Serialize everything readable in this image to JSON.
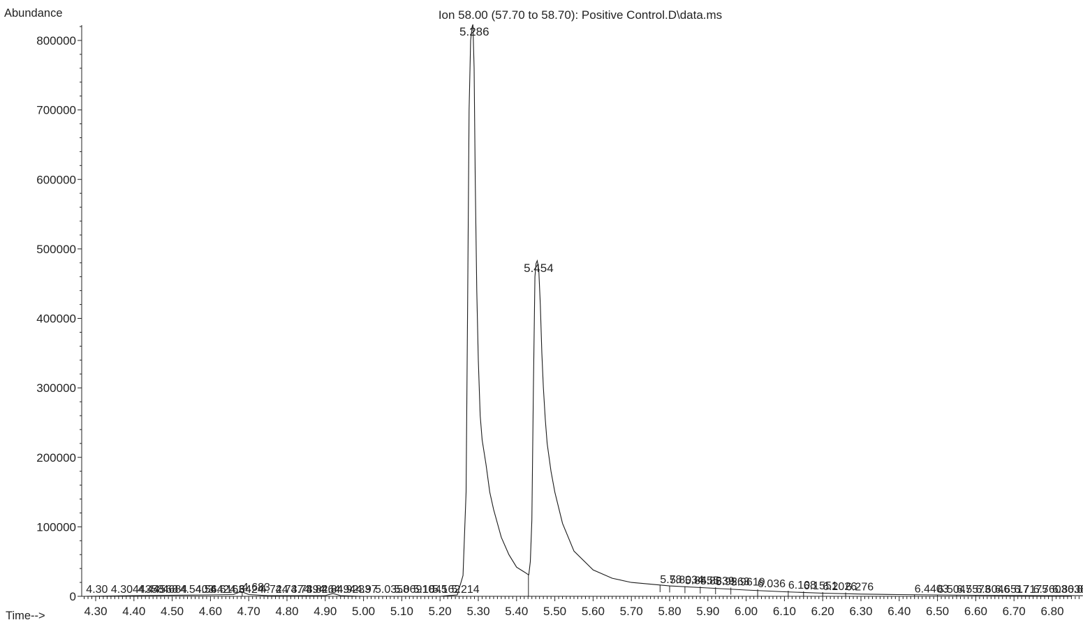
{
  "chart_data": {
    "type": "line",
    "title": "Ion  58.00 (57.70 to 58.70): Positive Control.D\\data.ms",
    "ylabel": "Abundance",
    "xlabel": "Time-->",
    "xlim": [
      4.27,
      6.89
    ],
    "ylim": [
      0,
      830000
    ],
    "x_ticks": [
      "4.30",
      "4.40",
      "4.50",
      "4.60",
      "4.70",
      "4.80",
      "4.90",
      "5.00",
      "5.10",
      "5.20",
      "5.30",
      "5.40",
      "5.50",
      "5.60",
      "5.70",
      "5.80",
      "5.90",
      "6.00",
      "6.10",
      "6.20",
      "6.30",
      "6.40",
      "6.50",
      "6.60",
      "6.70",
      "6.80"
    ],
    "y_ticks": [
      "0",
      "100000",
      "200000",
      "300000",
      "400000",
      "500000",
      "600000",
      "700000",
      "800000"
    ],
    "grid": false,
    "series": [
      {
        "x": [
          4.27,
          4.4,
          4.6,
          4.66,
          4.68,
          4.7,
          4.75,
          4.9,
          4.92,
          4.94,
          5.0,
          5.2,
          5.245,
          5.26,
          5.268,
          5.272,
          5.276,
          5.28,
          5.284,
          5.286,
          5.289,
          5.292,
          5.296,
          5.3,
          5.305,
          5.31,
          5.32,
          5.33,
          5.34,
          5.36,
          5.38,
          5.4,
          5.42,
          5.431,
          5.432,
          5.436,
          5.44,
          5.444,
          5.448,
          5.451,
          5.454,
          5.458,
          5.462,
          5.466,
          5.47,
          5.475,
          5.48,
          5.49,
          5.5,
          5.52,
          5.55,
          5.6,
          5.65,
          5.7,
          5.8,
          5.9,
          6.0,
          6.1,
          6.2,
          6.3,
          6.4,
          6.5,
          6.6,
          6.7,
          6.8,
          6.88
        ],
        "y": [
          0,
          1000,
          2000,
          2500,
          7000,
          2500,
          1000,
          1000,
          4000,
          1000,
          0,
          0,
          2000,
          30000,
          150000,
          420000,
          700000,
          800000,
          820000,
          823000,
          760000,
          600000,
          440000,
          340000,
          260000,
          225000,
          190000,
          150000,
          125000,
          85000,
          60000,
          42000,
          35000,
          31000,
          31000,
          50000,
          110000,
          300000,
          460000,
          479000,
          483000,
          470000,
          420000,
          350000,
          300000,
          255000,
          220000,
          180000,
          150000,
          105000,
          65000,
          38000,
          26000,
          20000,
          15000,
          12000,
          9000,
          6500,
          4500,
          3200,
          2500,
          2000,
          1500,
          1200,
          1000,
          800
        ]
      }
    ],
    "peak_labels": [
      {
        "x": 5.286,
        "y": 823000,
        "label": "5.286"
      },
      {
        "x": 5.454,
        "y": 483000,
        "label": "5.454"
      }
    ],
    "annotations": [
      {
        "x": 4.275,
        "y": 0,
        "label": "4.30"
      },
      {
        "x": 4.34,
        "y": 0,
        "label": "4.3044358"
      },
      {
        "x": 4.41,
        "y": 0,
        "label": "4.44568"
      },
      {
        "x": 4.45,
        "y": 0,
        "label": "4.4684"
      },
      {
        "x": 4.52,
        "y": 0,
        "label": "4.5403"
      },
      {
        "x": 4.56,
        "y": 0,
        "label": "4.5642"
      },
      {
        "x": 4.6,
        "y": 0,
        "label": "4.6163"
      },
      {
        "x": 4.65,
        "y": 0,
        "label": "4.6424"
      },
      {
        "x": 4.683,
        "y": 5000,
        "label": "4.683"
      },
      {
        "x": 4.73,
        "y": 0,
        "label": "4.724"
      },
      {
        "x": 4.77,
        "y": 0,
        "label": "4.7374"
      },
      {
        "x": 4.81,
        "y": 0,
        "label": "4.7394"
      },
      {
        "x": 4.85,
        "y": 0,
        "label": "4.8264"
      },
      {
        "x": 4.89,
        "y": 0,
        "label": "4.8494"
      },
      {
        "x": 4.93,
        "y": 0,
        "label": "4.9233"
      },
      {
        "x": 4.98,
        "y": 0,
        "label": "4.97"
      },
      {
        "x": 5.03,
        "y": 0,
        "label": "5.0358"
      },
      {
        "x": 5.08,
        "y": 0,
        "label": "5.06910"
      },
      {
        "x": 5.13,
        "y": 0,
        "label": "5.1845"
      },
      {
        "x": 5.18,
        "y": 0,
        "label": "5.162"
      },
      {
        "x": 5.23,
        "y": 0,
        "label": "5.214"
      },
      {
        "x": 5.775,
        "y": 16000,
        "label": "5.78"
      },
      {
        "x": 5.8,
        "y": 15500,
        "label": "5.8034"
      },
      {
        "x": 5.84,
        "y": 14500,
        "label": "5.8455"
      },
      {
        "x": 5.88,
        "y": 14000,
        "label": "5.8839"
      },
      {
        "x": 5.92,
        "y": 13000,
        "label": "5.9263"
      },
      {
        "x": 5.96,
        "y": 12500,
        "label": "5.9619"
      },
      {
        "x": 6.03,
        "y": 10000,
        "label": "6.036"
      },
      {
        "x": 6.11,
        "y": 8000,
        "label": "6.108"
      },
      {
        "x": 6.15,
        "y": 7000,
        "label": "6.1551"
      },
      {
        "x": 6.2,
        "y": 6000,
        "label": "6.2026"
      },
      {
        "x": 6.26,
        "y": 5500,
        "label": "6.276"
      },
      {
        "x": 6.44,
        "y": 2500,
        "label": "6.4403"
      },
      {
        "x": 6.5,
        "y": 2000,
        "label": "6.5047"
      },
      {
        "x": 6.55,
        "y": 1800,
        "label": "6.5573"
      },
      {
        "x": 6.6,
        "y": 1500,
        "label": "6.6046"
      },
      {
        "x": 6.65,
        "y": 1300,
        "label": "6.6517"
      },
      {
        "x": 6.7,
        "y": 1200,
        "label": "6.7175"
      },
      {
        "x": 6.75,
        "y": 1000,
        "label": "6.7603"
      },
      {
        "x": 6.8,
        "y": 900,
        "label": "6.8038"
      },
      {
        "x": 6.84,
        "y": 800,
        "label": "6.8403"
      }
    ]
  }
}
